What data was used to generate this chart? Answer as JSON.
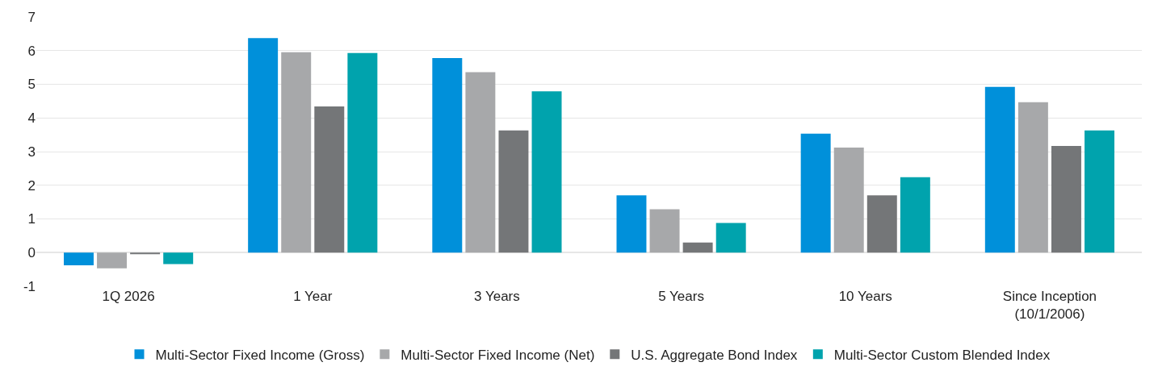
{
  "chart_data": {
    "type": "bar",
    "categories": [
      "1Q 2026",
      "1 Year",
      "3 Years",
      "5 Years",
      "10 Years",
      "Since Inception\n(10/1/2006)"
    ],
    "series": [
      {
        "name": "Multi-Sector Fixed Income (Gross)",
        "color": "#0090da",
        "values": [
          -0.38,
          6.37,
          5.78,
          1.7,
          3.53,
          4.92
        ]
      },
      {
        "name": "Multi-Sector Fixed Income (Net)",
        "color": "#a7a8aa",
        "values": [
          -0.47,
          5.95,
          5.36,
          1.29,
          3.12,
          4.47
        ]
      },
      {
        "name": "U.S. Aggregate Bond Index",
        "color": "#747678",
        "values": [
          -0.05,
          4.34,
          3.63,
          0.3,
          1.7,
          3.17
        ]
      },
      {
        "name": "Multi-Sector Custom Blended Index",
        "color": "#00a3ad",
        "values": [
          -0.34,
          5.93,
          4.79,
          0.88,
          2.24,
          3.63
        ]
      }
    ],
    "ylim": [
      -1,
      7
    ],
    "yticks": [
      -1,
      0,
      1,
      2,
      3,
      4,
      5,
      6,
      7
    ],
    "grid": "y",
    "legend": "bottom"
  }
}
